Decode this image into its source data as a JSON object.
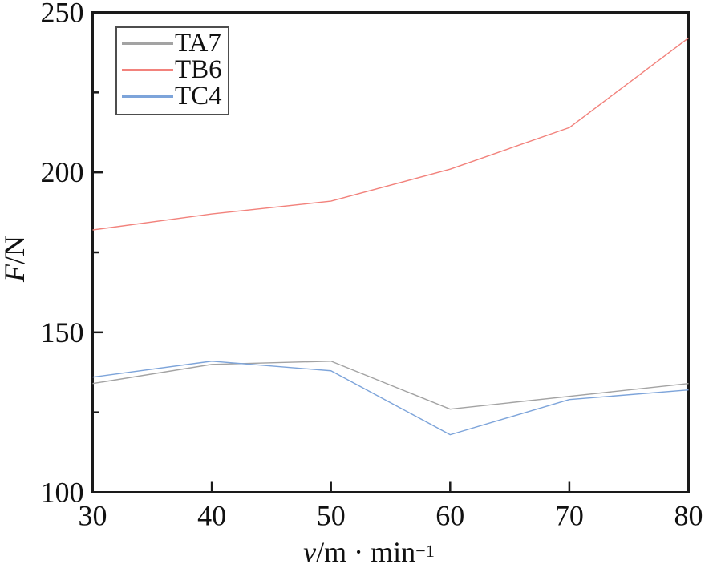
{
  "figure": {
    "background": "#ffffff",
    "frame_color": "#1a1a1a",
    "tick_label_color": "#111111"
  },
  "chart_data": {
    "type": "line",
    "title": "",
    "x": [
      30,
      40,
      50,
      60,
      70,
      80
    ],
    "series": [
      {
        "name": "TA7",
        "color": "#a3a3a3",
        "values": [
          134,
          140,
          141,
          126,
          130,
          134
        ]
      },
      {
        "name": "TB6",
        "color": "#f2827c",
        "values": [
          182,
          187,
          191,
          201,
          214,
          242
        ]
      },
      {
        "name": "TC4",
        "color": "#7da4da",
        "values": [
          136,
          141,
          138,
          118,
          129,
          132
        ]
      }
    ],
    "xlabel": {
      "variable": "v",
      "unit": "/m · min",
      "superscript": "−1"
    },
    "ylabel": {
      "variable": "F",
      "unit": "/N"
    },
    "xlim": [
      30,
      80
    ],
    "ylim": [
      100,
      250
    ],
    "xticks": [
      30,
      40,
      50,
      60,
      70,
      80
    ],
    "yticks": [
      100,
      150,
      200,
      250
    ],
    "yticks_minor": [
      125,
      175,
      225
    ],
    "grid": false,
    "legend_position": "top-left"
  }
}
